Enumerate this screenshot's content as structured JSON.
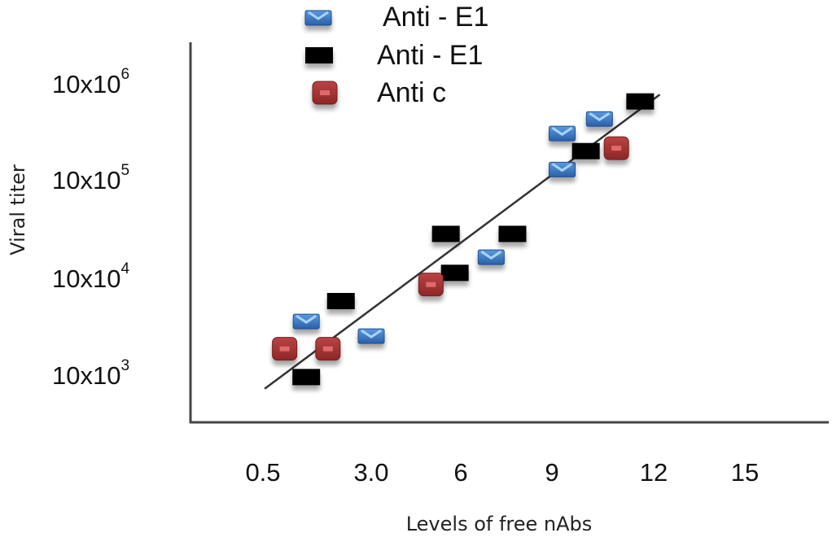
{
  "chart_data": {
    "type": "scatter",
    "title": "",
    "xlabel": "Levels of free nAbs",
    "ylabel": "Viral titer",
    "x_ticks": [
      "0.5",
      "3.0",
      "6",
      "9",
      "12",
      "15"
    ],
    "x_tick_values": [
      0.5,
      3.0,
      6,
      9,
      12,
      15
    ],
    "y_ticks": [
      {
        "base": "10x10",
        "exp": "3",
        "level": 3
      },
      {
        "base": "10x10",
        "exp": "4",
        "level": 4
      },
      {
        "base": "10x10",
        "exp": "5",
        "level": 5
      },
      {
        "base": "10x10",
        "exp": "6",
        "level": 6
      }
    ],
    "y_scale": "log (tick level n = 10x10^n)",
    "xlim": [
      0.5,
      15
    ],
    "ylim_level": [
      2.5,
      6.4
    ],
    "grid": false,
    "legend_position": "top-center",
    "series": [
      {
        "name": "Anti - E1",
        "marker": "blue-envelope",
        "color": "#3a78c2",
        "points": [
          {
            "x": 1.5,
            "level": 3.55
          },
          {
            "x": 3.0,
            "level": 3.4
          },
          {
            "x": 7.0,
            "level": 4.21
          },
          {
            "x": 9.3,
            "level": 5.11
          },
          {
            "x": 9.3,
            "level": 5.48
          },
          {
            "x": 10.4,
            "level": 5.63
          }
        ]
      },
      {
        "name": "Anti - E1",
        "marker": "black-rect",
        "color": "#000000",
        "points": [
          {
            "x": 1.5,
            "level": 2.98
          },
          {
            "x": 2.3,
            "level": 3.76
          },
          {
            "x": 5.5,
            "level": 4.45
          },
          {
            "x": 5.8,
            "level": 4.05
          },
          {
            "x": 7.7,
            "level": 4.45
          },
          {
            "x": 10.0,
            "level": 5.3
          },
          {
            "x": 11.6,
            "level": 5.81
          }
        ]
      },
      {
        "name": "Anti c",
        "marker": "red-rounded-square",
        "color": "#a83232",
        "points": [
          {
            "x": 1.0,
            "level": 3.27
          },
          {
            "x": 2.0,
            "level": 3.27
          },
          {
            "x": 5.0,
            "level": 3.93
          },
          {
            "x": 10.9,
            "level": 5.33
          }
        ]
      }
    ],
    "trendline": {
      "start": {
        "x": 0.54,
        "level": 2.86
      },
      "end": {
        "x": 12.2,
        "level": 5.88
      },
      "color": "#333333"
    }
  }
}
